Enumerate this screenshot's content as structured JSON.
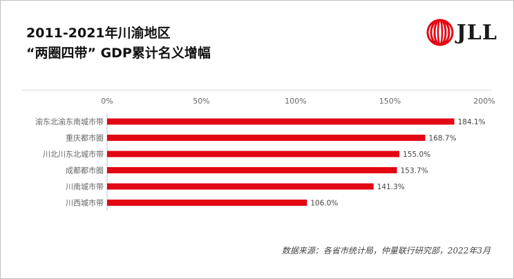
{
  "header": {
    "title_line1": "2011-2021年川渝地区",
    "title_line2": "“两圈四带” GDP累计名义增幅",
    "logo_text": "JLL",
    "logo_icon": "jll-swirl-icon"
  },
  "footer": {
    "source": "数据来源：各省市统计局，仲量联行研究部，2022年3月"
  },
  "colors": {
    "bar": "#e30613",
    "logo_red": "#e30613",
    "axis_text": "#666666"
  },
  "chart_data": {
    "type": "bar",
    "orientation": "horizontal",
    "categories": [
      "渝东北渝东南城市带",
      "重庆都市圈",
      "川北川东北城市带",
      "成都都市圈",
      "川南城市带",
      "川西城市带"
    ],
    "values": [
      184.1,
      168.7,
      155.0,
      153.7,
      141.3,
      106.0
    ],
    "data_labels": [
      "184.1%",
      "168.7%",
      "155.0%",
      "153.7%",
      "141.3%",
      "106.0%"
    ],
    "xticks": [
      0,
      50,
      100,
      150,
      200
    ],
    "xtick_labels": [
      "0%",
      "50%",
      "100%",
      "150%",
      "200%"
    ],
    "xlim": [
      0,
      200
    ],
    "xaxis_position": "top",
    "grid": false,
    "legend": "none"
  }
}
